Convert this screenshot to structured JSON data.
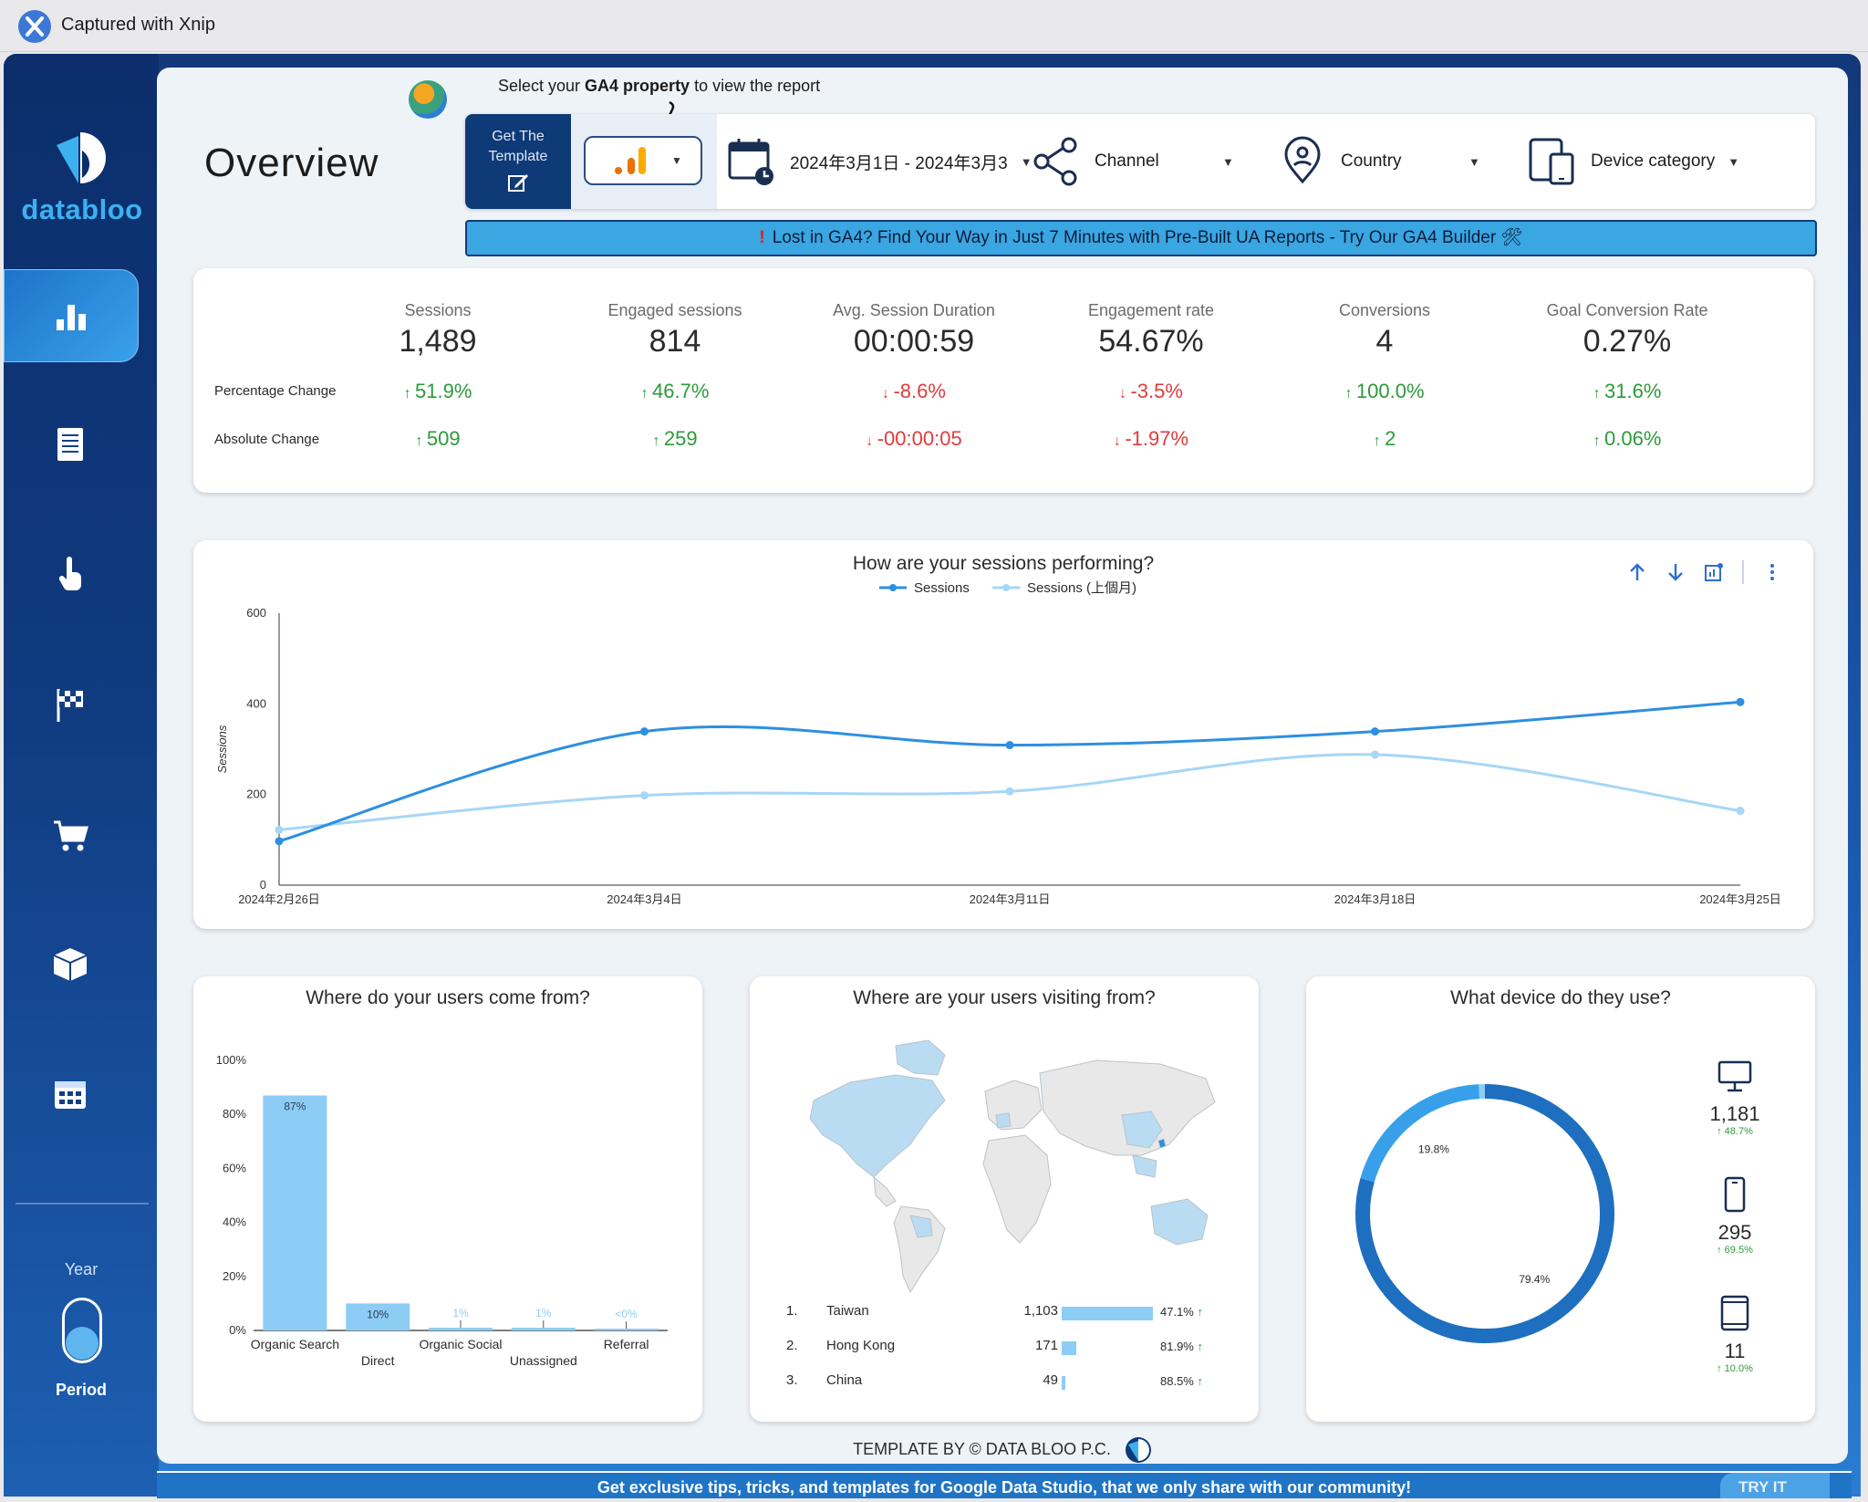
{
  "capture_bar": {
    "title": "Captured with Xnip"
  },
  "sidebar": {
    "brand": "databloo",
    "nav": [
      {
        "icon": "bar-chart-icon",
        "active": true
      },
      {
        "icon": "document-icon",
        "active": false
      },
      {
        "icon": "pointer-hand-icon",
        "active": false
      },
      {
        "icon": "checkered-flag-icon",
        "active": false
      },
      {
        "icon": "shopping-cart-icon",
        "active": false
      },
      {
        "icon": "box-icon",
        "active": false
      },
      {
        "icon": "calendar-icon",
        "active": false
      }
    ],
    "toggle": {
      "top_label": "Year",
      "bottom_label": "Period"
    }
  },
  "header": {
    "title": "Overview",
    "hint_prefix": "Select your ",
    "hint_bold": "GA4 property",
    "hint_suffix": " to view the report"
  },
  "filters": {
    "get_template_line1": "Get The",
    "get_template_line2": "Template",
    "date_range": "2024年3月1日 - 2024年3月3",
    "channel": "Channel",
    "country": "Country",
    "device": "Device category"
  },
  "promo": {
    "mark": "!",
    "text": "Lost in GA4? Find Your Way in Just 7 Minutes with Pre-Built UA Reports - Try Our GA4 Builder 🛠"
  },
  "kpis": {
    "row_labels": {
      "pct": "Percentage Change",
      "abs": "Absolute Change"
    },
    "items": [
      {
        "label": "Sessions",
        "value": "1,489",
        "pct": "51.9%",
        "abs": "509",
        "dir": "up"
      },
      {
        "label": "Engaged sessions",
        "value": "814",
        "pct": "46.7%",
        "abs": "259",
        "dir": "up"
      },
      {
        "label": "Avg. Session Duration",
        "value": "00:00:59",
        "pct": "-8.6%",
        "abs": "-00:00:05",
        "dir": "down"
      },
      {
        "label": "Engagement rate",
        "value": "54.67%",
        "pct": "-3.5%",
        "abs": "-1.97%",
        "dir": "down"
      },
      {
        "label": "Conversions",
        "value": "4",
        "pct": "100.0%",
        "abs": "2",
        "dir": "up"
      },
      {
        "label": "Goal Conversion Rate",
        "value": "0.27%",
        "pct": "31.6%",
        "abs": "0.06%",
        "dir": "up"
      }
    ]
  },
  "sessions_chart": {
    "title": "How are your sessions performing?"
  },
  "channels_chart": {
    "title": "Where do your users come from?"
  },
  "geo": {
    "title": "Where are your users visiting from?",
    "rows": [
      {
        "rank": "1.",
        "name": "Taiwan",
        "value": "1,103",
        "share": 1.0,
        "pct": "47.1%"
      },
      {
        "rank": "2.",
        "name": "Hong Kong",
        "value": "171",
        "share": 0.155,
        "pct": "81.9%"
      },
      {
        "rank": "3.",
        "name": "China",
        "value": "49",
        "share": 0.044,
        "pct": "88.5%"
      }
    ]
  },
  "devices": {
    "title": "What device do they use?",
    "items": [
      {
        "icon": "desktop-icon",
        "value": "1,181",
        "change": "48.7%"
      },
      {
        "icon": "mobile-icon",
        "value": "295",
        "change": "69.5%"
      },
      {
        "icon": "tablet-icon",
        "value": "11",
        "change": "10.0%"
      }
    ]
  },
  "chart_data": [
    {
      "type": "line",
      "title": "How are your sessions performing?",
      "xlabel": "",
      "ylabel": "Sessions",
      "x": [
        "2024年2月26日",
        "2024年3月4日",
        "2024年3月11日",
        "2024年3月18日",
        "2024年3月25日"
      ],
      "ylim": [
        0,
        600
      ],
      "yticks": [
        0,
        200,
        400,
        600
      ],
      "legend": "top-center",
      "series": [
        {
          "name": "Sessions",
          "color": "#2d8fe0",
          "values": [
            97,
            339,
            309,
            339,
            404
          ]
        },
        {
          "name": "Sessions (上個月)",
          "color": "#a7d6f6",
          "values": [
            122,
            198,
            207,
            288,
            164
          ]
        }
      ]
    },
    {
      "type": "bar",
      "title": "Where do your users come from?",
      "categories": [
        "Organic Search",
        "Direct",
        "Organic Social",
        "Unassigned",
        "Referral"
      ],
      "values": [
        87,
        10,
        1,
        1,
        0
      ],
      "data_labels": [
        "87%",
        "10%",
        "1%",
        "1%",
        "<0%"
      ],
      "ylim": [
        0,
        100
      ],
      "yticks": [
        "0%",
        "20%",
        "40%",
        "60%",
        "80%",
        "100%"
      ],
      "color": "#8dcdf5"
    },
    {
      "type": "pie",
      "title": "What device do they use?",
      "donut": true,
      "slices": [
        {
          "label": "79.4%",
          "value": 79.4,
          "color": "#1e6fbf"
        },
        {
          "label": "19.8%",
          "value": 19.8,
          "color": "#38a0ea"
        },
        {
          "label": "",
          "value": 0.8,
          "color": "#8dcdf5"
        }
      ]
    }
  ],
  "footer": {
    "credit": "TEMPLATE BY © DATA BLOO P.C.",
    "community": "Get exclusive tips, tricks, and templates for Google Data Studio, that we only share with our community!",
    "try_it": "TRY IT"
  }
}
